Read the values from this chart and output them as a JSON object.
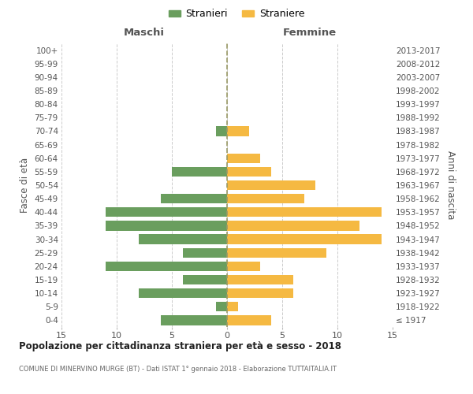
{
  "age_groups": [
    "100+",
    "95-99",
    "90-94",
    "85-89",
    "80-84",
    "75-79",
    "70-74",
    "65-69",
    "60-64",
    "55-59",
    "50-54",
    "45-49",
    "40-44",
    "35-39",
    "30-34",
    "25-29",
    "20-24",
    "15-19",
    "10-14",
    "5-9",
    "0-4"
  ],
  "birth_years": [
    "≤ 1917",
    "1918-1922",
    "1923-1927",
    "1928-1932",
    "1933-1937",
    "1938-1942",
    "1943-1947",
    "1948-1952",
    "1953-1957",
    "1958-1962",
    "1963-1967",
    "1968-1972",
    "1973-1977",
    "1978-1982",
    "1983-1987",
    "1988-1992",
    "1993-1997",
    "1998-2002",
    "2003-2007",
    "2008-2012",
    "2013-2017"
  ],
  "maschi": [
    0,
    0,
    0,
    0,
    0,
    0,
    1,
    0,
    0,
    5,
    0,
    6,
    11,
    11,
    8,
    4,
    11,
    4,
    8,
    1,
    6
  ],
  "femmine": [
    0,
    0,
    0,
    0,
    0,
    0,
    2,
    0,
    3,
    4,
    8,
    7,
    14,
    12,
    14,
    9,
    3,
    6,
    6,
    1,
    4
  ],
  "color_maschi": "#6a9e5e",
  "color_femmine": "#f5b942",
  "title": "Popolazione per cittadinanza straniera per età e sesso - 2018",
  "subtitle": "COMUNE DI MINERVINO MURGE (BT) - Dati ISTAT 1° gennaio 2018 - Elaborazione TUTTAITALIA.IT",
  "label_maschi_top": "Maschi",
  "label_femmine_top": "Femmine",
  "ylabel_left": "Fasce di età",
  "ylabel_right": "Anni di nascita",
  "legend_maschi": "Stranieri",
  "legend_femmine": "Straniere",
  "xlim": 15,
  "background_color": "#ffffff",
  "grid_color": "#cccccc",
  "bar_height": 0.72
}
